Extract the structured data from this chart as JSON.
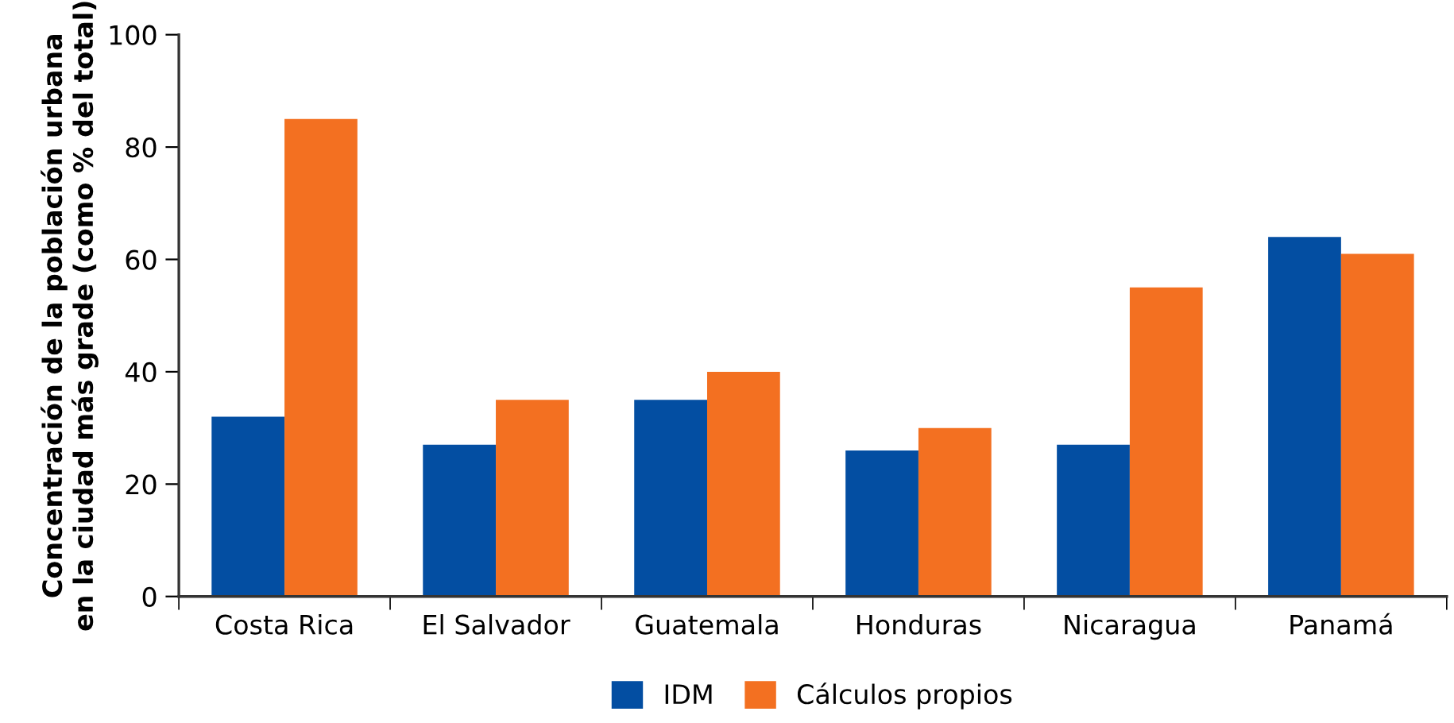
{
  "chart_data": {
    "type": "bar",
    "ylabel": "Concentración de la población urbana\nen la ciudad más grade (como % del total)",
    "categories": [
      "Costa Rica",
      "El Salvador",
      "Guatemala",
      "Honduras",
      "Nicaragua",
      "Panamá"
    ],
    "series": [
      {
        "name": "IDM",
        "color": "#034ea2",
        "values": [
          32,
          27,
          35,
          26,
          27,
          64
        ]
      },
      {
        "name": "Cálculos propios",
        "color": "#f37021",
        "values": [
          85,
          35,
          40,
          30,
          55,
          61
        ]
      }
    ],
    "ylim": [
      0,
      100
    ],
    "yticks": [
      0,
      20,
      40,
      60,
      80,
      100
    ],
    "grid": false,
    "legend": "bottom"
  }
}
